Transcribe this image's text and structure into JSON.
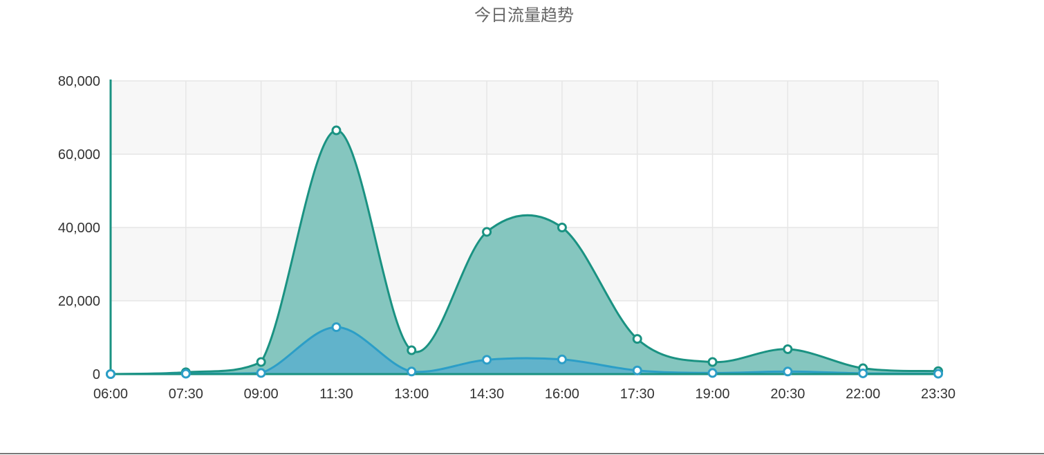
{
  "chart_data": {
    "type": "area",
    "title": "今日流量趋势",
    "xlabel": "",
    "ylabel": "",
    "x_tick_labels": [
      "06:00",
      "07:30",
      "09:00",
      "11:30",
      "13:00",
      "14:30",
      "16:00",
      "17:30",
      "19:00",
      "20:30",
      "22:00",
      "23:30"
    ],
    "y_tick_labels": [
      "0",
      "20,000",
      "40,000",
      "60,000",
      "80,000"
    ],
    "ylim": [
      0,
      80000
    ],
    "y_ticks": [
      0,
      20000,
      40000,
      60000,
      80000
    ],
    "grid": true,
    "series": [
      {
        "color": "#1a9282",
        "fill": "#85c6bf",
        "values": [
          0,
          500,
          3300,
          66500,
          6500,
          38800,
          40000,
          9600,
          3300,
          6800,
          1600,
          800
        ]
      },
      {
        "color": "#2c9ec7",
        "fill": "#5aafcc",
        "values": [
          0,
          100,
          300,
          12800,
          700,
          3900,
          4000,
          1000,
          300,
          700,
          200,
          100
        ]
      }
    ],
    "colors": {
      "axis": "#1a9282",
      "grid": "#e6e6e6",
      "band": "#f7f7f7",
      "marker_fill": "#ffffff"
    }
  }
}
